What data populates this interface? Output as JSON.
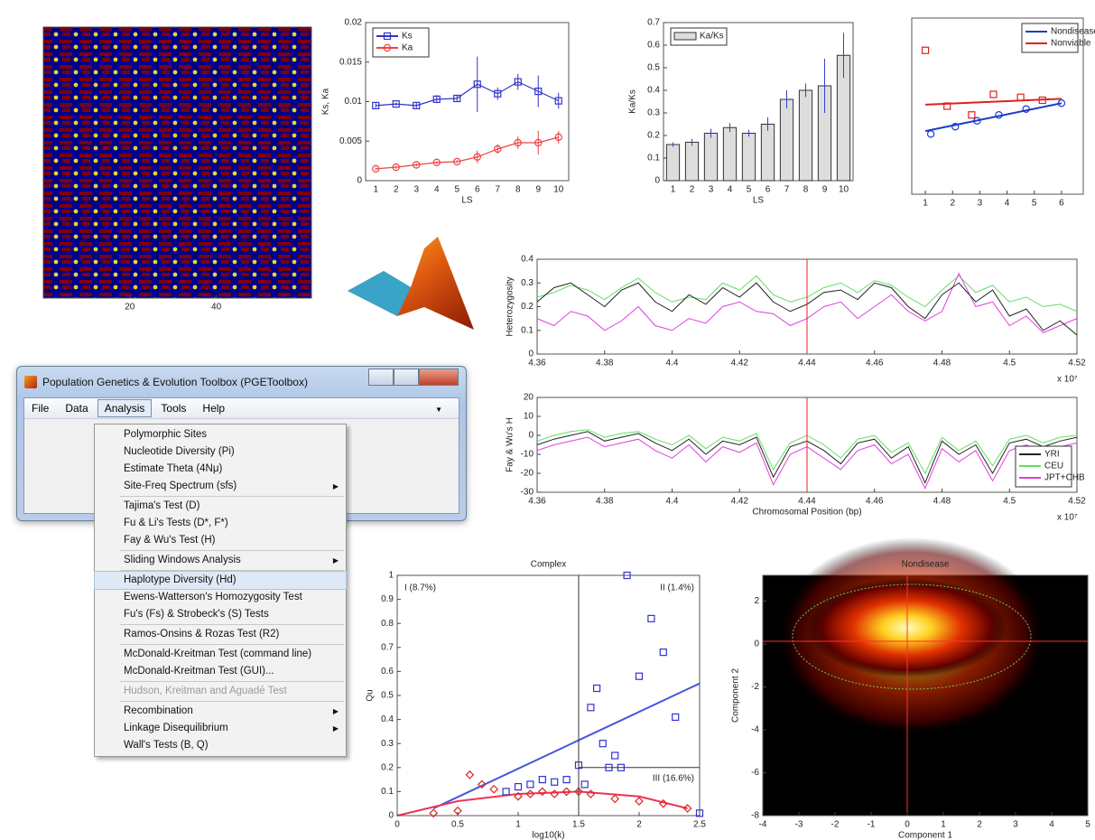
{
  "chart_data": [
    {
      "type": "heatmap",
      "background": "#00008b",
      "xlim": [
        0,
        62
      ],
      "xticks": [
        20,
        40
      ],
      "ylim": [
        0,
        62
      ]
    },
    {
      "type": "line",
      "categories": [
        "1",
        "2",
        "3",
        "4",
        "5",
        "6",
        "7",
        "8",
        "9",
        "10"
      ],
      "ylim": [
        0,
        0.02
      ],
      "yticks": [
        0,
        0.005,
        0.01,
        0.015,
        0.02
      ],
      "xlabel": "LS",
      "ylabel": "Ks, Ka",
      "legend": "upper left",
      "series": [
        {
          "name": "Ks",
          "color": "#3333cc",
          "marker": "square",
          "values": [
            0.0095,
            0.0097,
            0.0095,
            0.0103,
            0.0104,
            0.0122,
            0.011,
            0.0125,
            0.0113,
            0.0101
          ],
          "errors": [
            0.0003,
            0.0002,
            0.0004,
            0.0005,
            0.0004,
            0.0035,
            0.0008,
            0.001,
            0.002,
            0.001
          ]
        },
        {
          "name": "Ka",
          "color": "#ee4444",
          "marker": "circle",
          "values": [
            0.0015,
            0.0017,
            0.002,
            0.0023,
            0.0024,
            0.003,
            0.004,
            0.0048,
            0.0048,
            0.0055
          ],
          "errors": [
            0.0002,
            0.0002,
            0.0002,
            0.0002,
            0.0002,
            0.0008,
            0.0006,
            0.0008,
            0.0015,
            0.0008
          ]
        }
      ]
    },
    {
      "type": "bar",
      "categories": [
        "1",
        "2",
        "3",
        "4",
        "5",
        "6",
        "7",
        "8",
        "9",
        "10"
      ],
      "name": "Ka/Ks",
      "color": "#dddddd",
      "values": [
        0.16,
        0.17,
        0.21,
        0.235,
        0.21,
        0.25,
        0.36,
        0.4,
        0.42,
        0.555
      ],
      "errors": [
        0.01,
        0.015,
        0.02,
        0.02,
        0.015,
        0.03,
        0.04,
        0.03,
        0.12,
        0.1
      ],
      "ylim": [
        0,
        0.7
      ],
      "yticks": [
        0,
        0.1,
        0.2,
        0.3,
        0.4,
        0.5,
        0.6,
        0.7
      ],
      "xlabel": "LS",
      "ylabel": "Ka/Ks",
      "legend": "upper left"
    },
    {
      "type": "scatter",
      "xlim": [
        0.5,
        6.8
      ],
      "xticks": [
        1,
        2,
        3,
        4,
        5,
        6
      ],
      "ylim": [
        -3,
        3
      ],
      "legend": "upper right",
      "series": [
        {
          "name": "Nondisease",
          "color": "#1a3ccc",
          "marker": "line",
          "x": [
            1,
            6
          ],
          "y": [
            -0.85,
            0.1
          ]
        },
        {
          "name": "Nonviable",
          "color": "#e02020",
          "marker": "line",
          "x": [
            1,
            6
          ],
          "y": [
            0.05,
            0.25
          ]
        },
        {
          "color": "#1a3ccc",
          "marker": "circle",
          "x": [
            1.2,
            2.1,
            2.9,
            3.7,
            4.7,
            6
          ],
          "y": [
            -0.95,
            -0.7,
            -0.5,
            -0.3,
            -0.1,
            0.1
          ]
        },
        {
          "color": "#e02020",
          "marker": "square",
          "x": [
            1,
            1.8,
            2.7,
            3.5,
            4.5,
            5.3
          ],
          "y": [
            1.9,
            0,
            -0.3,
            0.4,
            0.3,
            0.2
          ]
        }
      ]
    },
    {
      "type": "line",
      "xlim": [
        4.36,
        4.52
      ],
      "xticks": [
        4.36,
        4.38,
        4.4,
        4.42,
        4.44,
        4.46,
        4.48,
        4.5,
        4.52
      ],
      "ylim": [
        0,
        0.4
      ],
      "yticks": [
        0,
        0.1,
        0.2,
        0.3,
        0.4
      ],
      "ylabel": "Heterozygosity",
      "x_multiplier": "x 10⁷",
      "vline": 4.44,
      "x": [
        4.36,
        4.365,
        4.37,
        4.375,
        4.38,
        4.385,
        4.39,
        4.395,
        4.4,
        4.405,
        4.41,
        4.415,
        4.42,
        4.425,
        4.43,
        4.435,
        4.44,
        4.445,
        4.45,
        4.455,
        4.46,
        4.465,
        4.47,
        4.475,
        4.48,
        4.485,
        4.49,
        4.495,
        4.5,
        4.505,
        4.51,
        4.515,
        4.52
      ],
      "series": [
        {
          "color": "#66dd66",
          "values": [
            0.24,
            0.26,
            0.29,
            0.27,
            0.23,
            0.28,
            0.32,
            0.26,
            0.22,
            0.24,
            0.23,
            0.3,
            0.27,
            0.33,
            0.25,
            0.22,
            0.24,
            0.28,
            0.3,
            0.26,
            0.31,
            0.29,
            0.24,
            0.2,
            0.27,
            0.33,
            0.26,
            0.29,
            0.22,
            0.24,
            0.2,
            0.21,
            0.18
          ]
        },
        {
          "color": "#e040e0",
          "values": [
            0.15,
            0.12,
            0.18,
            0.16,
            0.1,
            0.14,
            0.2,
            0.12,
            0.1,
            0.15,
            0.13,
            0.2,
            0.22,
            0.18,
            0.17,
            0.12,
            0.15,
            0.2,
            0.22,
            0.15,
            0.2,
            0.25,
            0.18,
            0.14,
            0.18,
            0.34,
            0.2,
            0.22,
            0.12,
            0.16,
            0.09,
            0.12,
            0.15
          ]
        },
        {
          "color": "#222222",
          "values": [
            0.22,
            0.28,
            0.3,
            0.25,
            0.2,
            0.27,
            0.3,
            0.22,
            0.18,
            0.25,
            0.21,
            0.28,
            0.24,
            0.3,
            0.22,
            0.18,
            0.21,
            0.26,
            0.27,
            0.23,
            0.3,
            0.28,
            0.2,
            0.15,
            0.25,
            0.3,
            0.22,
            0.27,
            0.16,
            0.19,
            0.1,
            0.14,
            0.08
          ]
        }
      ]
    },
    {
      "type": "line",
      "xlim": [
        4.36,
        4.52
      ],
      "xticks": [
        4.36,
        4.38,
        4.4,
        4.42,
        4.44,
        4.46,
        4.48,
        4.5,
        4.52
      ],
      "ylim": [
        -30,
        20
      ],
      "yticks": [
        -30,
        -20,
        -10,
        0,
        10,
        20
      ],
      "xlabel": "Chromosomal Position (bp)",
      "ylabel": "Fay & Wu's H",
      "x_multiplier": "x 10⁷",
      "vline": 4.44,
      "legend": "lower right",
      "x": [
        4.36,
        4.365,
        4.37,
        4.375,
        4.38,
        4.385,
        4.39,
        4.395,
        4.4,
        4.405,
        4.41,
        4.415,
        4.42,
        4.425,
        4.43,
        4.435,
        4.44,
        4.445,
        4.45,
        4.455,
        4.46,
        4.465,
        4.47,
        4.475,
        4.48,
        4.485,
        4.49,
        4.495,
        4.5,
        4.505,
        4.51,
        4.515,
        4.52
      ],
      "series": [
        {
          "name": "YRI",
          "color": "#222222",
          "values": [
            -5,
            -2,
            0,
            2,
            -3,
            -1,
            1,
            -4,
            -8,
            -2,
            -10,
            -3,
            -5,
            -1,
            -22,
            -6,
            -3,
            -8,
            -15,
            -4,
            -2,
            -12,
            -6,
            -25,
            -3,
            -10,
            -5,
            -20,
            -4,
            -2,
            -6,
            -3,
            -1
          ]
        },
        {
          "name": "CEU",
          "color": "#66dd66",
          "values": [
            -3,
            0,
            2,
            3,
            -1,
            1,
            2,
            -2,
            -5,
            0,
            -7,
            -1,
            -3,
            1,
            -18,
            -4,
            0,
            -5,
            -12,
            -2,
            0,
            -9,
            -4,
            -20,
            -1,
            -8,
            -3,
            -16,
            -2,
            0,
            -4,
            -1,
            0
          ]
        },
        {
          "name": "JPT+CHB",
          "color": "#e040e0",
          "values": [
            -8,
            -5,
            -3,
            -1,
            -6,
            -4,
            -2,
            -8,
            -12,
            -5,
            -14,
            -6,
            -9,
            -4,
            -26,
            -10,
            -6,
            -12,
            -18,
            -8,
            -5,
            -15,
            -10,
            -28,
            -7,
            -14,
            -8,
            -24,
            -8,
            -5,
            -9,
            -6,
            -4
          ]
        }
      ]
    },
    {
      "type": "scatter",
      "title": "Complex",
      "xlim": [
        0,
        2.5
      ],
      "xticks": [
        0,
        0.5,
        1,
        1.5,
        2,
        2.5
      ],
      "ylim": [
        0,
        1
      ],
      "yticks": [
        0,
        0.1,
        0.2,
        0.3,
        0.4,
        0.5,
        0.6,
        0.7,
        0.8,
        0.9,
        1
      ],
      "xlabel": "log10(k)",
      "ylabel": "Qu",
      "vline": 1.5,
      "hline": 0.2,
      "annotations": [
        "I (8.7%)",
        "II (1.4%)",
        "III (16.6%)"
      ],
      "series": [
        {
          "color": "#4455dd",
          "marker": "line",
          "x": [
            0.3,
            2.5
          ],
          "y": [
            0.03,
            0.55
          ]
        },
        {
          "color": "#ee3355",
          "marker": "line",
          "x": [
            0,
            0.5,
            1,
            1.5,
            2,
            2.4
          ],
          "y": [
            0,
            0.06,
            0.09,
            0.1,
            0.08,
            0.03
          ]
        },
        {
          "color": "#3333cc",
          "marker": "square",
          "x": [
            1.9,
            2.1,
            2.2,
            2,
            1.65,
            1.6,
            2.3,
            1.7,
            1.8,
            1.75,
            1.85,
            1.2,
            1.3,
            1.4,
            1.1,
            1.0,
            0.9,
            1.5,
            2.5,
            1.55
          ],
          "y": [
            1,
            0.82,
            0.68,
            0.58,
            0.53,
            0.45,
            0.41,
            0.3,
            0.25,
            0.2,
            0.2,
            0.15,
            0.14,
            0.15,
            0.13,
            0.12,
            0.1,
            0.21,
            0.01,
            0.13
          ]
        },
        {
          "color": "#dd2222",
          "marker": "diamond",
          "x": [
            0.6,
            0.7,
            0.8,
            1.0,
            1.1,
            1.2,
            1.3,
            1.4,
            1.5,
            1.6,
            1.8,
            2.0,
            2.2,
            2.4,
            0.5,
            0.3
          ],
          "y": [
            0.17,
            0.13,
            0.11,
            0.08,
            0.09,
            0.1,
            0.09,
            0.1,
            0.1,
            0.09,
            0.07,
            0.06,
            0.05,
            0.03,
            0.02,
            0.01
          ]
        }
      ]
    },
    {
      "type": "density",
      "title": "Nondisease",
      "background": "#000000",
      "xlim": [
        -4,
        5
      ],
      "xticks": [
        -4,
        -3,
        -2,
        -1,
        0,
        1,
        2,
        3,
        4,
        5
      ],
      "ylim": [
        -8,
        3.2
      ],
      "yticks": [
        -8,
        -6,
        -4,
        -2,
        0,
        2
      ],
      "xlabel": "Component 1",
      "ylabel": "Component 2"
    }
  ],
  "window": {
    "title": "Population Genetics & Evolution Toolbox (PGEToolbox)",
    "menubar": [
      {
        "label": "File"
      },
      {
        "label": "Data"
      },
      {
        "label": "Analysis",
        "open": true
      },
      {
        "label": "Tools"
      },
      {
        "label": "Help"
      }
    ],
    "menu": {
      "groups": [
        [
          {
            "label": "Polymorphic Sites"
          },
          {
            "label": "Nucleotide Diversity (Pi)"
          },
          {
            "label": "Estimate Theta (4Nμ)"
          },
          {
            "label": "Site-Freq Spectrum (sfs)",
            "submenu": true
          }
        ],
        [
          {
            "label": "Tajima's Test (D)"
          },
          {
            "label": "Fu & Li's Tests (D*, F*)"
          },
          {
            "label": "Fay & Wu's Test (H)"
          }
        ],
        [
          {
            "label": "Sliding Windows Analysis",
            "submenu": true
          }
        ],
        [
          {
            "label": "Haplotype Diversity (Hd)",
            "selected": true
          },
          {
            "label": "Ewens-Watterson's Homozygosity Test"
          },
          {
            "label": "Fu's (Fs) & Strobeck's (S) Tests"
          }
        ],
        [
          {
            "label": "Ramos-Onsins & Rozas Test (R2)"
          }
        ],
        [
          {
            "label": "McDonald-Kreitman Test (command line)"
          },
          {
            "label": "McDonald-Kreitman Test (GUI)..."
          }
        ],
        [
          {
            "label": "Hudson, Kreitman and Aguadé Test",
            "disabled": true
          }
        ],
        [
          {
            "label": "Recombination",
            "submenu": true
          },
          {
            "label": "Linkage Disequilibrium",
            "submenu": true
          },
          {
            "label": "Wall's Tests (B, Q)"
          }
        ]
      ]
    }
  }
}
